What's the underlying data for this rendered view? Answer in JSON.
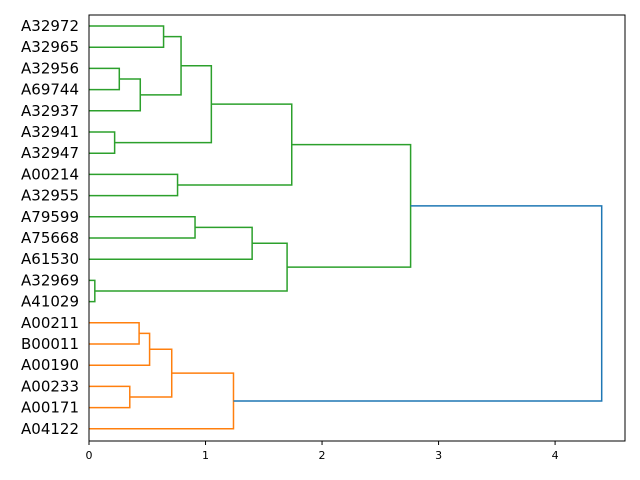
{
  "chart_data": {
    "type": "dendrogram",
    "orientation": "horizontal",
    "xlim": [
      0,
      4.6
    ],
    "xticks": [
      0,
      1,
      2,
      3,
      4
    ],
    "leaves": [
      "A32972",
      "A32965",
      "A32956",
      "A69744",
      "A32937",
      "A32941",
      "A32947",
      "A00214",
      "A32955",
      "A79599",
      "A75668",
      "A61530",
      "A32969",
      "A41029",
      "A00211",
      "B00011",
      "A00190",
      "A00233",
      "A00171",
      "A04122"
    ],
    "colors": {
      "green": "#2ca02c",
      "orange": "#ff7f0e",
      "blue": "#1f77b4"
    },
    "links": [
      {
        "a": "A32956",
        "b": "A69744",
        "height": 0.26,
        "color": "green"
      },
      {
        "a": "A32941",
        "b": "A32947",
        "height": 0.22,
        "color": "green"
      },
      {
        "a": "A32969",
        "b": "A41029",
        "height": 0.05,
        "color": "green"
      },
      {
        "a": "A00211",
        "b": "B00011",
        "height": 0.43,
        "color": "orange"
      },
      {
        "a": "A00233",
        "b": "A00171",
        "height": 0.35,
        "color": "orange"
      },
      {
        "a": "A32972",
        "b": "A32965",
        "height": 0.64,
        "color": "green"
      },
      {
        "a": "L1",
        "b": "A32937",
        "height": 0.44,
        "color": "green"
      },
      {
        "a": "L6",
        "b": "L7",
        "height": 0.79,
        "color": "green"
      },
      {
        "a": "L8",
        "b": "L2",
        "height": 1.05,
        "color": "green"
      },
      {
        "a": "A00214",
        "b": "A32955",
        "height": 0.76,
        "color": "green"
      },
      {
        "a": "L9",
        "b": "L10",
        "height": 1.74,
        "color": "green"
      },
      {
        "a": "A79599",
        "b": "A75668",
        "height": 0.91,
        "color": "green"
      },
      {
        "a": "L12",
        "b": "A61530",
        "height": 1.4,
        "color": "green"
      },
      {
        "a": "L13",
        "b": "L3",
        "height": 1.7,
        "color": "green"
      },
      {
        "a": "L11",
        "b": "L14",
        "height": 2.76,
        "color": "green"
      },
      {
        "a": "L4",
        "b": "A00190",
        "height": 0.52,
        "color": "orange"
      },
      {
        "a": "L16",
        "b": "L5",
        "height": 0.71,
        "color": "orange"
      },
      {
        "a": "L17",
        "b": "A04122",
        "height": 1.24,
        "color": "orange"
      },
      {
        "a": "L15",
        "b": "L18",
        "height": 4.4,
        "color": "blue"
      }
    ]
  }
}
